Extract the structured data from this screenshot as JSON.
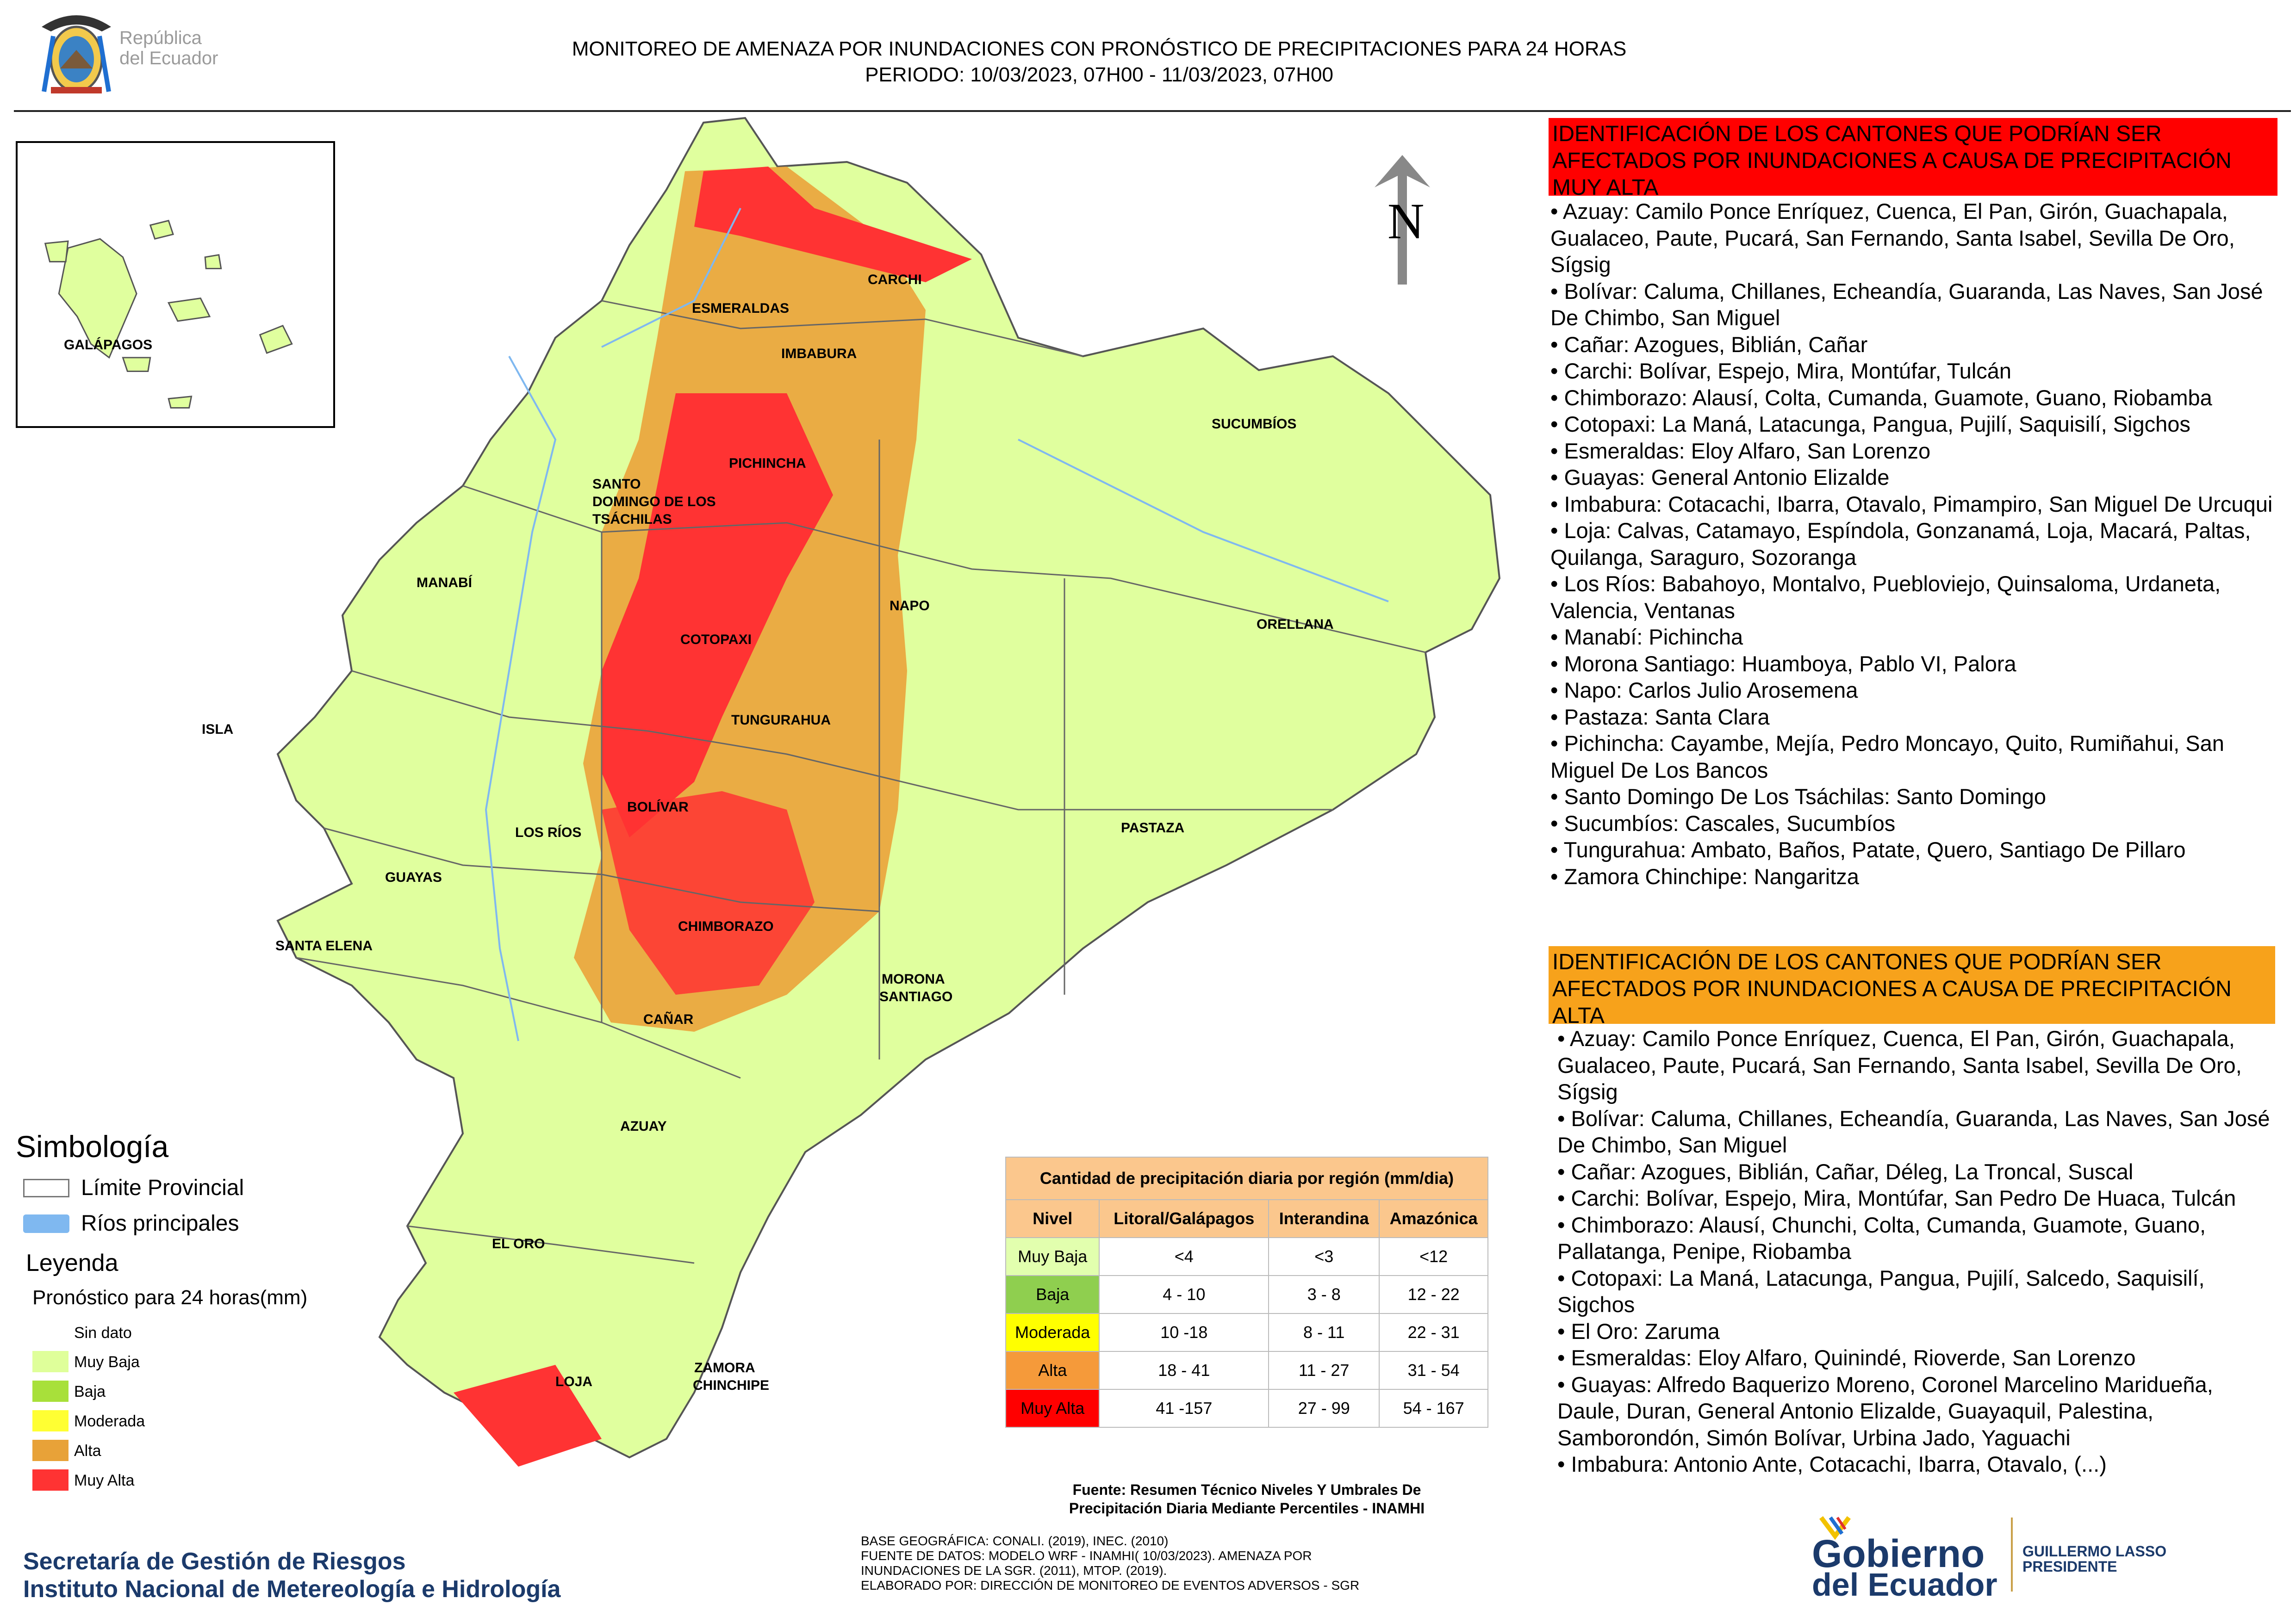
{
  "header": {
    "republic": [
      "República",
      "del Ecuador"
    ],
    "title_line1": "MONITOREO DE AMENAZA POR INUNDACIONES  CON PRONÓSTICO DE  PRECIPITACIONES PARA 24 HORAS",
    "title_line2": "PERIODO: 10/03/2023, 07H00 - 11/03/2023, 07H00"
  },
  "map": {
    "north": "N",
    "inset_label": "GALÁPAGOS",
    "labels": [
      "CARCHI",
      "ESMERALDAS",
      "IMBABURA",
      "SUCUMBÍOS",
      "PICHINCHA",
      "SANTO",
      "DOMINGO DE LOS",
      "TSÁCHILAS",
      "MANABÍ",
      "NAPO",
      "ORELLANA",
      "COTOPAXI",
      "TUNGURAHUA",
      "ISLA",
      "BOLÍVAR",
      "LOS RÍOS",
      "PASTAZA",
      "GUAYAS",
      "CHIMBORAZO",
      "SANTA ELENA",
      "MORONA",
      "SANTIAGO",
      "CAÑAR",
      "AZUAY",
      "EL ORO",
      "ZAMORA",
      "CHINCHIPE",
      "LOJA"
    ]
  },
  "legend": {
    "simbologia": "Simbología",
    "limite": "Límite Provincial",
    "rios": "Ríos principales",
    "leyenda": "Leyenda",
    "pronostico": "Pronóstico para 24 horas(mm)",
    "classes": [
      {
        "label": "Sin dato",
        "color": "#ffffff"
      },
      {
        "label": "Muy Baja",
        "color": "#dfff9a"
      },
      {
        "label": "Baja",
        "color": "#a8e03a"
      },
      {
        "label": "Moderada",
        "color": "#ffff33"
      },
      {
        "label": "Alta",
        "color": "#e8a238"
      },
      {
        "label": "Muy Alta",
        "color": "#ff3333"
      }
    ]
  },
  "table": {
    "caption": "Cantidad de precipitación diaria por región (mm/dia)",
    "headers": [
      "Nivel",
      "Litoral/Galápagos",
      "Interandina",
      "Amazónica"
    ],
    "rows": [
      {
        "nivel": "Muy Baja",
        "color": "#e2ffae",
        "vals": [
          "<4",
          "<3",
          "<12"
        ]
      },
      {
        "nivel": "Baja",
        "color": "#8fcf4f",
        "vals": [
          "4 - 10",
          "3 - 8",
          "12 - 22"
        ]
      },
      {
        "nivel": "Moderada",
        "color": "#ffff00",
        "vals": [
          "10 -18",
          "8 - 11",
          "22 - 31"
        ]
      },
      {
        "nivel": "Alta",
        "color": "#f59a3a",
        "vals": [
          "18 - 41",
          "11 - 27",
          "31 - 54"
        ]
      },
      {
        "nivel": "Muy Alta",
        "color": "#ff0000",
        "vals": [
          "41 -157",
          "27 - 99",
          "54 - 167"
        ]
      }
    ],
    "source_line1": "Fuente: Resumen Técnico Niveles Y Umbrales De",
    "source_line2": "Precipitación Diaria Mediante Percentiles - INAMHI"
  },
  "footer": {
    "sgr": "Secretaría de Gestión de Riesgos",
    "inamhi": "Instituto Nacional de Metereología e Hidrología",
    "base": [
      "BASE GEOGRÁFICA: CONALI. (2019), INEC. (2010)",
      "FUENTE DE DATOS: MODELO WRF - INAMHI( 10/03/2023).  AMENAZA POR",
      "INUNDACIONES DE LA SGR. (2011), MTOP. (2019).",
      "ELABORADO POR: DIRECCIÓN DE MONITOREO DE EVENTOS ADVERSOS - SGR"
    ],
    "gob1": "Gobierno",
    "gob2": "del Ecuador",
    "lasso1": "GUILLERMO LASSO",
    "lasso2": "PRESIDENTE"
  },
  "panel_red": {
    "heading": "IDENTIFICACIÓN DE LOS CANTONES QUE PODRÍAN SER AFECTADOS POR INUNDACIONES  A CAUSA DE PRECIPITACIÓN MUY ALTA",
    "items": [
      "• Azuay: Camilo Ponce Enríquez, Cuenca, El Pan, Girón, Guachapala, Gualaceo, Paute, Pucará, San Fernando, Santa Isabel, Sevilla De Oro, Sígsig",
      "• Bolívar: Caluma, Chillanes, Echeandía, Guaranda, Las Naves, San José De Chimbo, San Miguel",
      "• Cañar: Azogues, Biblián, Cañar",
      "• Carchi: Bolívar, Espejo, Mira, Montúfar, Tulcán",
      "• Chimborazo: Alausí, Colta, Cumanda, Guamote, Guano, Riobamba",
      "• Cotopaxi: La Maná, Latacunga, Pangua, Pujilí, Saquisilí, Sigchos",
      "• Esmeraldas: Eloy Alfaro, San Lorenzo",
      "• Guayas: General Antonio Elizalde",
      "• Imbabura: Cotacachi, Ibarra, Otavalo, Pimampiro, San Miguel De Urcuqui",
      "• Loja: Calvas, Catamayo, Espíndola, Gonzanamá, Loja, Macará, Paltas, Quilanga, Saraguro, Sozoranga",
      "• Los Ríos: Babahoyo, Montalvo, Puebloviejo, Quinsaloma, Urdaneta, Valencia, Ventanas",
      "• Manabí: Pichincha",
      "• Morona Santiago: Huamboya, Pablo VI, Palora",
      "• Napo: Carlos Julio Arosemena",
      "• Pastaza: Santa Clara",
      "• Pichincha: Cayambe, Mejía, Pedro Moncayo, Quito, Rumiñahui, San Miguel De Los Bancos",
      "• Santo Domingo De Los Tsáchilas: Santo Domingo",
      "• Sucumbíos: Cascales, Sucumbíos",
      "• Tungurahua: Ambato, Baños, Patate, Quero, Santiago De Pillaro",
      "• Zamora Chinchipe: Nangaritza"
    ]
  },
  "panel_orange": {
    "heading": "IDENTIFICACIÓN DE LOS CANTONES QUE  PODRÍAN SER AFECTADOS POR INUNDACIONES  A CAUSA DE PRECIPITACIÓN ALTA",
    "items": [
      "• Azuay: Camilo Ponce Enríquez, Cuenca, El Pan, Girón, Guachapala, Gualaceo, Paute, Pucará, San Fernando, Santa Isabel, Sevilla De Oro, Sígsig",
      "• Bolívar: Caluma, Chillanes, Echeandía, Guaranda, Las Naves, San José De Chimbo, San Miguel",
      "• Cañar: Azogues, Biblián, Cañar, Déleg, La Troncal, Suscal",
      "• Carchi: Bolívar, Espejo, Mira, Montúfar, San Pedro De Huaca, Tulcán",
      "• Chimborazo: Alausí, Chunchi, Colta, Cumanda, Guamote, Guano, Pallatanga, Penipe, Riobamba",
      "• Cotopaxi: La Maná, Latacunga, Pangua, Pujilí, Salcedo, Saquisilí, Sigchos",
      "• El Oro: Zaruma",
      "• Esmeraldas: Eloy Alfaro, Quinindé, Rioverde, San Lorenzo",
      "• Guayas: Alfredo Baquerizo Moreno, Coronel Marcelino Maridueña, Daule, Duran, General Antonio Elizalde, Guayaquil, Palestina, Samborondón, Simón Bolívar, Urbina Jado, Yaguachi",
      "• Imbabura: Antonio Ante, Cotacachi, Ibarra, Otavalo, (...)"
    ]
  }
}
